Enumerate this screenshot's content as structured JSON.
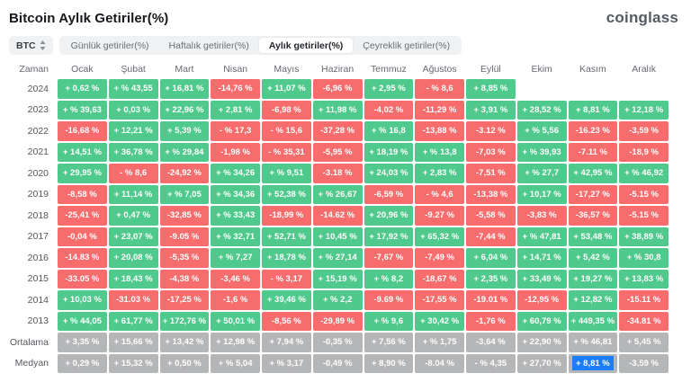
{
  "header": {
    "title": "Bitcoin Aylık Getiriler(%)",
    "logo": "coinglass"
  },
  "toolbar": {
    "symbol": "BTC",
    "tabs": [
      {
        "label": "Günlük getiriler(%)",
        "active": false
      },
      {
        "label": "Haftalık getiriler(%)",
        "active": false
      },
      {
        "label": "Aylık getiriler(%)",
        "active": true
      },
      {
        "label": "Çeyreklik getiriler(%)",
        "active": false
      }
    ]
  },
  "colors": {
    "positive": "#50c98c",
    "negative": "#f76c6c",
    "neutral": "#b5b6b8",
    "selection": "#1b7df8"
  },
  "table": {
    "columns": [
      "Zaman",
      "Ocak",
      "Şubat",
      "Mart",
      "Nisan",
      "Mayıs",
      "Haziran",
      "Temmuz",
      "Ağustos",
      "Eylül",
      "Ekim",
      "Kasım",
      "Aralık"
    ],
    "rows": [
      {
        "label": "2024",
        "cells": [
          {
            "t": "+ 0,62 %",
            "c": "g"
          },
          {
            "t": "+ % 43,55",
            "c": "g"
          },
          {
            "t": "+ 16,81 %",
            "c": "g"
          },
          {
            "t": "-14,76 %",
            "c": "r"
          },
          {
            "t": "+ 11,07 %",
            "c": "g"
          },
          {
            "t": "-6,96 %",
            "c": "r"
          },
          {
            "t": "+ 2,95 %",
            "c": "g"
          },
          {
            "t": "- % 8,6",
            "c": "r"
          },
          {
            "t": "+ 8,85 %",
            "c": "g"
          },
          {
            "t": "",
            "c": "e"
          },
          {
            "t": "",
            "c": "e"
          },
          {
            "t": "",
            "c": "e"
          }
        ]
      },
      {
        "label": "2023",
        "cells": [
          {
            "t": "+ % 39,63",
            "c": "g"
          },
          {
            "t": "+ 0,03 %",
            "c": "g"
          },
          {
            "t": "+ 22,96 %",
            "c": "g"
          },
          {
            "t": "+ 2,81 %",
            "c": "g"
          },
          {
            "t": "-6,98 %",
            "c": "r"
          },
          {
            "t": "+ 11,98 %",
            "c": "g"
          },
          {
            "t": "-4,02 %",
            "c": "r"
          },
          {
            "t": "-11,29 %",
            "c": "r"
          },
          {
            "t": "+ 3,91 %",
            "c": "g"
          },
          {
            "t": "+ 28,52 %",
            "c": "g"
          },
          {
            "t": "+ 8,81 %",
            "c": "g"
          },
          {
            "t": "+ 12,18 %",
            "c": "g"
          }
        ]
      },
      {
        "label": "2022",
        "cells": [
          {
            "t": "-16,68 %",
            "c": "r"
          },
          {
            "t": "+ 12,21 %",
            "c": "g"
          },
          {
            "t": "+ 5,39 %",
            "c": "g"
          },
          {
            "t": "- % 17,3",
            "c": "r"
          },
          {
            "t": "- % 15,6",
            "c": "r"
          },
          {
            "t": "-37,28 %",
            "c": "r"
          },
          {
            "t": "+ % 16,8",
            "c": "g"
          },
          {
            "t": "-13,88 %",
            "c": "r"
          },
          {
            "t": "-3.12 %",
            "c": "r"
          },
          {
            "t": "+ % 5,56",
            "c": "g"
          },
          {
            "t": "-16.23 %",
            "c": "r"
          },
          {
            "t": "-3,59 %",
            "c": "r"
          }
        ]
      },
      {
        "label": "2021",
        "cells": [
          {
            "t": "+ 14,51 %",
            "c": "g"
          },
          {
            "t": "+ 36,78 %",
            "c": "g"
          },
          {
            "t": "+ % 29,84",
            "c": "g"
          },
          {
            "t": "-1,98 %",
            "c": "r"
          },
          {
            "t": "- % 35,31",
            "c": "r"
          },
          {
            "t": "-5,95 %",
            "c": "r"
          },
          {
            "t": "+ 18,19 %",
            "c": "g"
          },
          {
            "t": "+ % 13,8",
            "c": "g"
          },
          {
            "t": "-7,03 %",
            "c": "r"
          },
          {
            "t": "+ % 39,93",
            "c": "g"
          },
          {
            "t": "-7.11 %",
            "c": "r"
          },
          {
            "t": "-18,9 %",
            "c": "r"
          }
        ]
      },
      {
        "label": "2020",
        "cells": [
          {
            "t": "+ 29,95 %",
            "c": "g"
          },
          {
            "t": "- % 8,6",
            "c": "r"
          },
          {
            "t": "-24,92 %",
            "c": "r"
          },
          {
            "t": "+ % 34,26",
            "c": "g"
          },
          {
            "t": "+ % 9,51",
            "c": "g"
          },
          {
            "t": "-3.18 %",
            "c": "r"
          },
          {
            "t": "+ 24,03 %",
            "c": "g"
          },
          {
            "t": "+ 2,83 %",
            "c": "g"
          },
          {
            "t": "-7,51 %",
            "c": "r"
          },
          {
            "t": "+ % 27,7",
            "c": "g"
          },
          {
            "t": "+ 42,95 %",
            "c": "g"
          },
          {
            "t": "+ % 46,92",
            "c": "g"
          }
        ]
      },
      {
        "label": "2019",
        "cells": [
          {
            "t": "-8,58 %",
            "c": "r"
          },
          {
            "t": "+ 11,14 %",
            "c": "g"
          },
          {
            "t": "+ % 7,05",
            "c": "g"
          },
          {
            "t": "+ % 34,36",
            "c": "g"
          },
          {
            "t": "+ 52,38 %",
            "c": "g"
          },
          {
            "t": "+ % 26,67",
            "c": "g"
          },
          {
            "t": "-6,59 %",
            "c": "r"
          },
          {
            "t": "- % 4,6",
            "c": "r"
          },
          {
            "t": "-13,38 %",
            "c": "r"
          },
          {
            "t": "+ 10,17 %",
            "c": "g"
          },
          {
            "t": "-17,27 %",
            "c": "r"
          },
          {
            "t": "-5.15 %",
            "c": "r"
          }
        ]
      },
      {
        "label": "2018",
        "cells": [
          {
            "t": "-25,41 %",
            "c": "r"
          },
          {
            "t": "+ 0,47 %",
            "c": "g"
          },
          {
            "t": "-32,85 %",
            "c": "r"
          },
          {
            "t": "+ % 33,43",
            "c": "g"
          },
          {
            "t": "-18,99 %",
            "c": "r"
          },
          {
            "t": "-14.62 %",
            "c": "r"
          },
          {
            "t": "+ 20,96 %",
            "c": "g"
          },
          {
            "t": "-9.27 %",
            "c": "r"
          },
          {
            "t": "-5,58 %",
            "c": "r"
          },
          {
            "t": "-3,83 %",
            "c": "r"
          },
          {
            "t": "-36,57 %",
            "c": "r"
          },
          {
            "t": "-5.15 %",
            "c": "r"
          }
        ]
      },
      {
        "label": "2017",
        "cells": [
          {
            "t": "-0,04 %",
            "c": "r"
          },
          {
            "t": "+ 23,07 %",
            "c": "g"
          },
          {
            "t": "-9.05 %",
            "c": "r"
          },
          {
            "t": "+ % 32,71",
            "c": "g"
          },
          {
            "t": "+ 52,71 %",
            "c": "g"
          },
          {
            "t": "+ 10,45 %",
            "c": "g"
          },
          {
            "t": "+ 17,92 %",
            "c": "g"
          },
          {
            "t": "+ 65,32 %",
            "c": "g"
          },
          {
            "t": "-7,44 %",
            "c": "r"
          },
          {
            "t": "+ % 47,81",
            "c": "g"
          },
          {
            "t": "+ 53,48 %",
            "c": "g"
          },
          {
            "t": "+ 38,89 %",
            "c": "g"
          }
        ]
      },
      {
        "label": "2016",
        "cells": [
          {
            "t": "-14.83 %",
            "c": "r"
          },
          {
            "t": "+ 20,08 %",
            "c": "g"
          },
          {
            "t": "-5,35 %",
            "c": "r"
          },
          {
            "t": "+ % 7,27",
            "c": "g"
          },
          {
            "t": "+ 18,78 %",
            "c": "g"
          },
          {
            "t": "+ % 27,14",
            "c": "g"
          },
          {
            "t": "-7,67 %",
            "c": "r"
          },
          {
            "t": "-7,49 %",
            "c": "r"
          },
          {
            "t": "+ 6,04 %",
            "c": "g"
          },
          {
            "t": "+ 14,71 %",
            "c": "g"
          },
          {
            "t": "+ 5,42 %",
            "c": "g"
          },
          {
            "t": "+ % 30,8",
            "c": "g"
          }
        ]
      },
      {
        "label": "2015",
        "cells": [
          {
            "t": "-33.05 %",
            "c": "r"
          },
          {
            "t": "+ 18,43 %",
            "c": "g"
          },
          {
            "t": "-4,38 %",
            "c": "r"
          },
          {
            "t": "-3,46 %",
            "c": "r"
          },
          {
            "t": "- % 3,17",
            "c": "r"
          },
          {
            "t": "+ 15,19 %",
            "c": "g"
          },
          {
            "t": "+ % 8,2",
            "c": "g"
          },
          {
            "t": "-18,67 %",
            "c": "r"
          },
          {
            "t": "+ 2,35 %",
            "c": "g"
          },
          {
            "t": "+ 33,49 %",
            "c": "g"
          },
          {
            "t": "+ 19,27 %",
            "c": "g"
          },
          {
            "t": "+ 13,83 %",
            "c": "g"
          }
        ]
      },
      {
        "label": "2014",
        "cells": [
          {
            "t": "+ 10,03 %",
            "c": "g"
          },
          {
            "t": "-31.03 %",
            "c": "r"
          },
          {
            "t": "-17,25 %",
            "c": "r"
          },
          {
            "t": "-1,6 %",
            "c": "r"
          },
          {
            "t": "+ 39,46 %",
            "c": "g"
          },
          {
            "t": "+ % 2,2",
            "c": "g"
          },
          {
            "t": "-9.69 %",
            "c": "r"
          },
          {
            "t": "-17,55 %",
            "c": "r"
          },
          {
            "t": "-19.01 %",
            "c": "r"
          },
          {
            "t": "-12,95 %",
            "c": "r"
          },
          {
            "t": "+ 12,82 %",
            "c": "g"
          },
          {
            "t": "-15.11 %",
            "c": "r"
          }
        ]
      },
      {
        "label": "2013",
        "cells": [
          {
            "t": "+ % 44,05",
            "c": "g"
          },
          {
            "t": "+ 61,77 %",
            "c": "g"
          },
          {
            "t": "+ 172,76 %",
            "c": "g"
          },
          {
            "t": "+ 50,01 %",
            "c": "g"
          },
          {
            "t": "-8,56 %",
            "c": "r"
          },
          {
            "t": "-29,89 %",
            "c": "r"
          },
          {
            "t": "+ % 9,6",
            "c": "g"
          },
          {
            "t": "+ 30,42 %",
            "c": "g"
          },
          {
            "t": "-1,76 %",
            "c": "r"
          },
          {
            "t": "+ 60,79 %",
            "c": "g"
          },
          {
            "t": "+ 449,35 %",
            "c": "g"
          },
          {
            "t": "-34.81 %",
            "c": "r"
          }
        ]
      },
      {
        "label": "Ortalama",
        "cells": [
          {
            "t": "+ 3,35 %",
            "c": "n"
          },
          {
            "t": "+ 15,66 %",
            "c": "n"
          },
          {
            "t": "+ 13,42 %",
            "c": "n"
          },
          {
            "t": "+ 12,98 %",
            "c": "n"
          },
          {
            "t": "+ 7,94 %",
            "c": "n"
          },
          {
            "t": "-0,35 %",
            "c": "n"
          },
          {
            "t": "+ 7,56 %",
            "c": "n"
          },
          {
            "t": "+ % 1,75",
            "c": "n"
          },
          {
            "t": "-3,64 %",
            "c": "n"
          },
          {
            "t": "+ 22,90 %",
            "c": "n"
          },
          {
            "t": "+ % 46,81",
            "c": "n"
          },
          {
            "t": "+ 5,45 %",
            "c": "n"
          }
        ]
      },
      {
        "label": "Medyan",
        "cells": [
          {
            "t": "+ 0,29 %",
            "c": "n"
          },
          {
            "t": "+ 15,32 %",
            "c": "n"
          },
          {
            "t": "+ 0,50 %",
            "c": "n"
          },
          {
            "t": "+ % 5,04",
            "c": "n"
          },
          {
            "t": "+ % 3,17",
            "c": "n"
          },
          {
            "t": "-0,49 %",
            "c": "n"
          },
          {
            "t": "+ 8,90 %",
            "c": "n"
          },
          {
            "t": "-8.04 %",
            "c": "n"
          },
          {
            "t": "- % 4,35",
            "c": "n"
          },
          {
            "t": "+ 27,70 %",
            "c": "n"
          },
          {
            "t": "+ 8,81 %",
            "c": "n",
            "selected": true
          },
          {
            "t": "-3,59 %",
            "c": "n"
          }
        ]
      }
    ]
  }
}
